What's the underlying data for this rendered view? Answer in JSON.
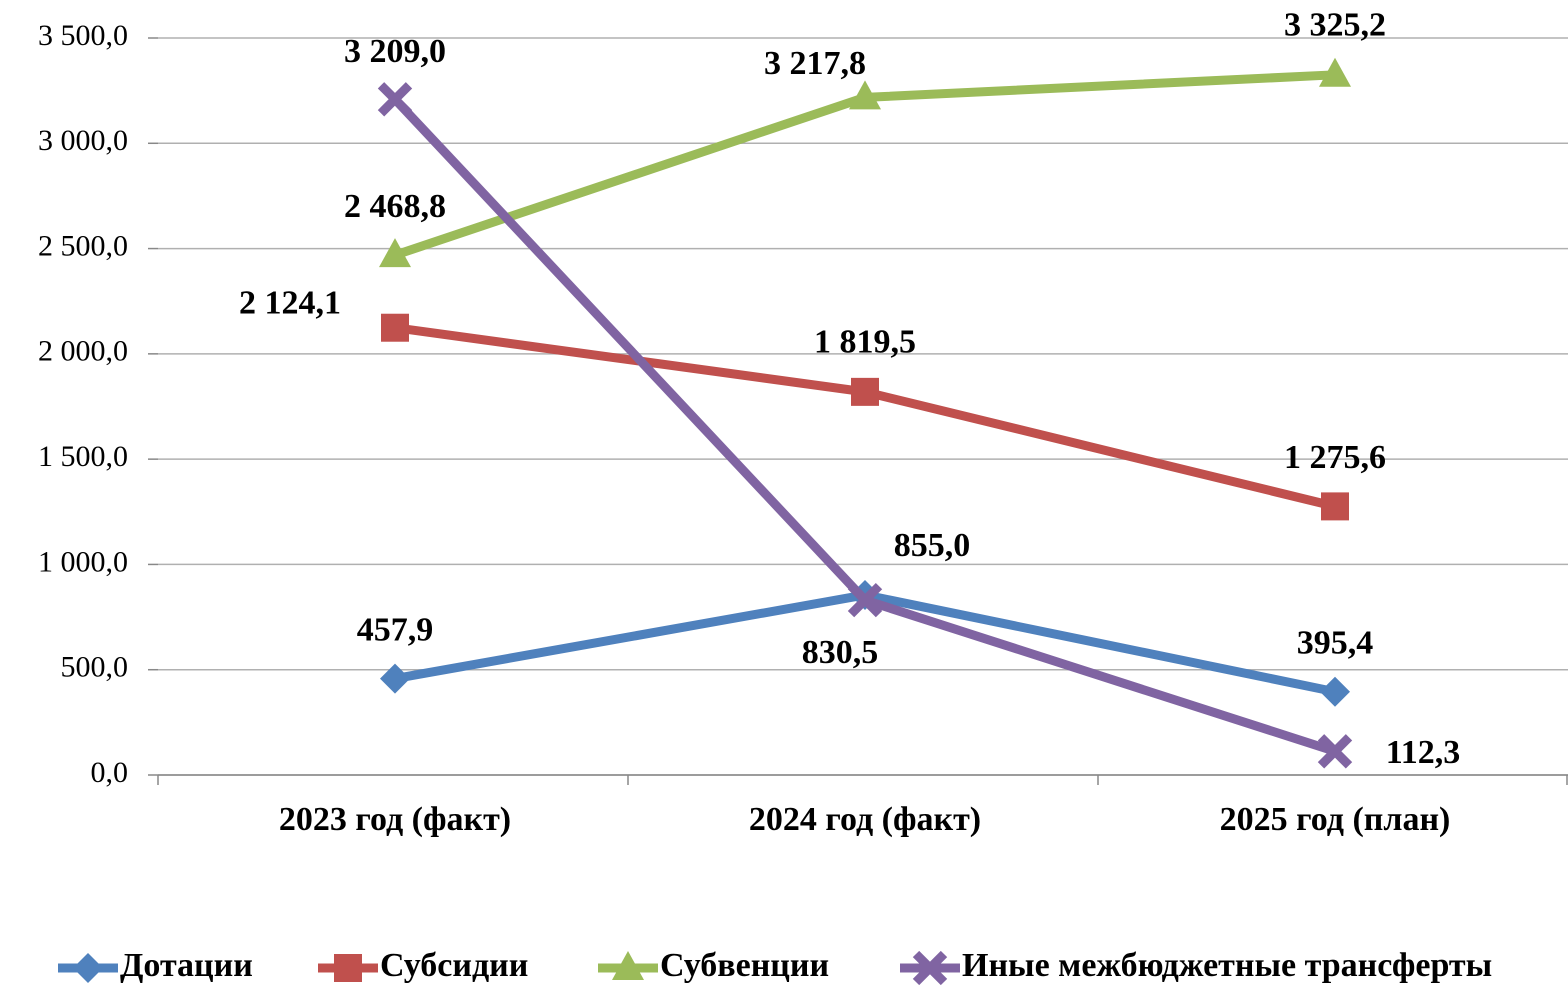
{
  "chart_data": {
    "type": "line",
    "categories": [
      "2023 год (факт)",
      "2024 год (факт)",
      "2025 год (план)"
    ],
    "series": [
      {
        "name": "Дотации",
        "color": "#4f81bd",
        "marker": "diamond",
        "values": [
          457.9,
          855.0,
          395.4
        ],
        "value_labels": [
          "457,9",
          "855,0",
          "395,4"
        ]
      },
      {
        "name": "Субсидии",
        "color": "#c0504d",
        "marker": "square",
        "values": [
          2124.1,
          1819.5,
          1275.6
        ],
        "value_labels": [
          "2 124,1",
          "1 819,5",
          "1 275,6"
        ]
      },
      {
        "name": "Субвенции",
        "color": "#9bbb59",
        "marker": "triangle",
        "values": [
          2468.8,
          3217.8,
          3325.2
        ],
        "value_labels": [
          "2 468,8",
          "3 217,8",
          "3 325,2"
        ]
      },
      {
        "name": "Иные межбюджетные трансферты",
        "color": "#8064a2",
        "marker": "x",
        "values": [
          3209.0,
          830.5,
          112.3
        ],
        "value_labels": [
          "3 209,0",
          "830,5",
          "112,3"
        ]
      }
    ],
    "ylim": [
      0,
      3500
    ],
    "yticks": [
      {
        "value": 0,
        "label": "0,0"
      },
      {
        "value": 500,
        "label": "500,0"
      },
      {
        "value": 1000,
        "label": "1 000,0"
      },
      {
        "value": 1500,
        "label": "1 500,0"
      },
      {
        "value": 2000,
        "label": "2 000,0"
      },
      {
        "value": 2500,
        "label": "2 500,0"
      },
      {
        "value": 3000,
        "label": "3 000,0"
      },
      {
        "value": 3500,
        "label": "3 500,0"
      }
    ],
    "grid": true,
    "legend": "bottom"
  }
}
